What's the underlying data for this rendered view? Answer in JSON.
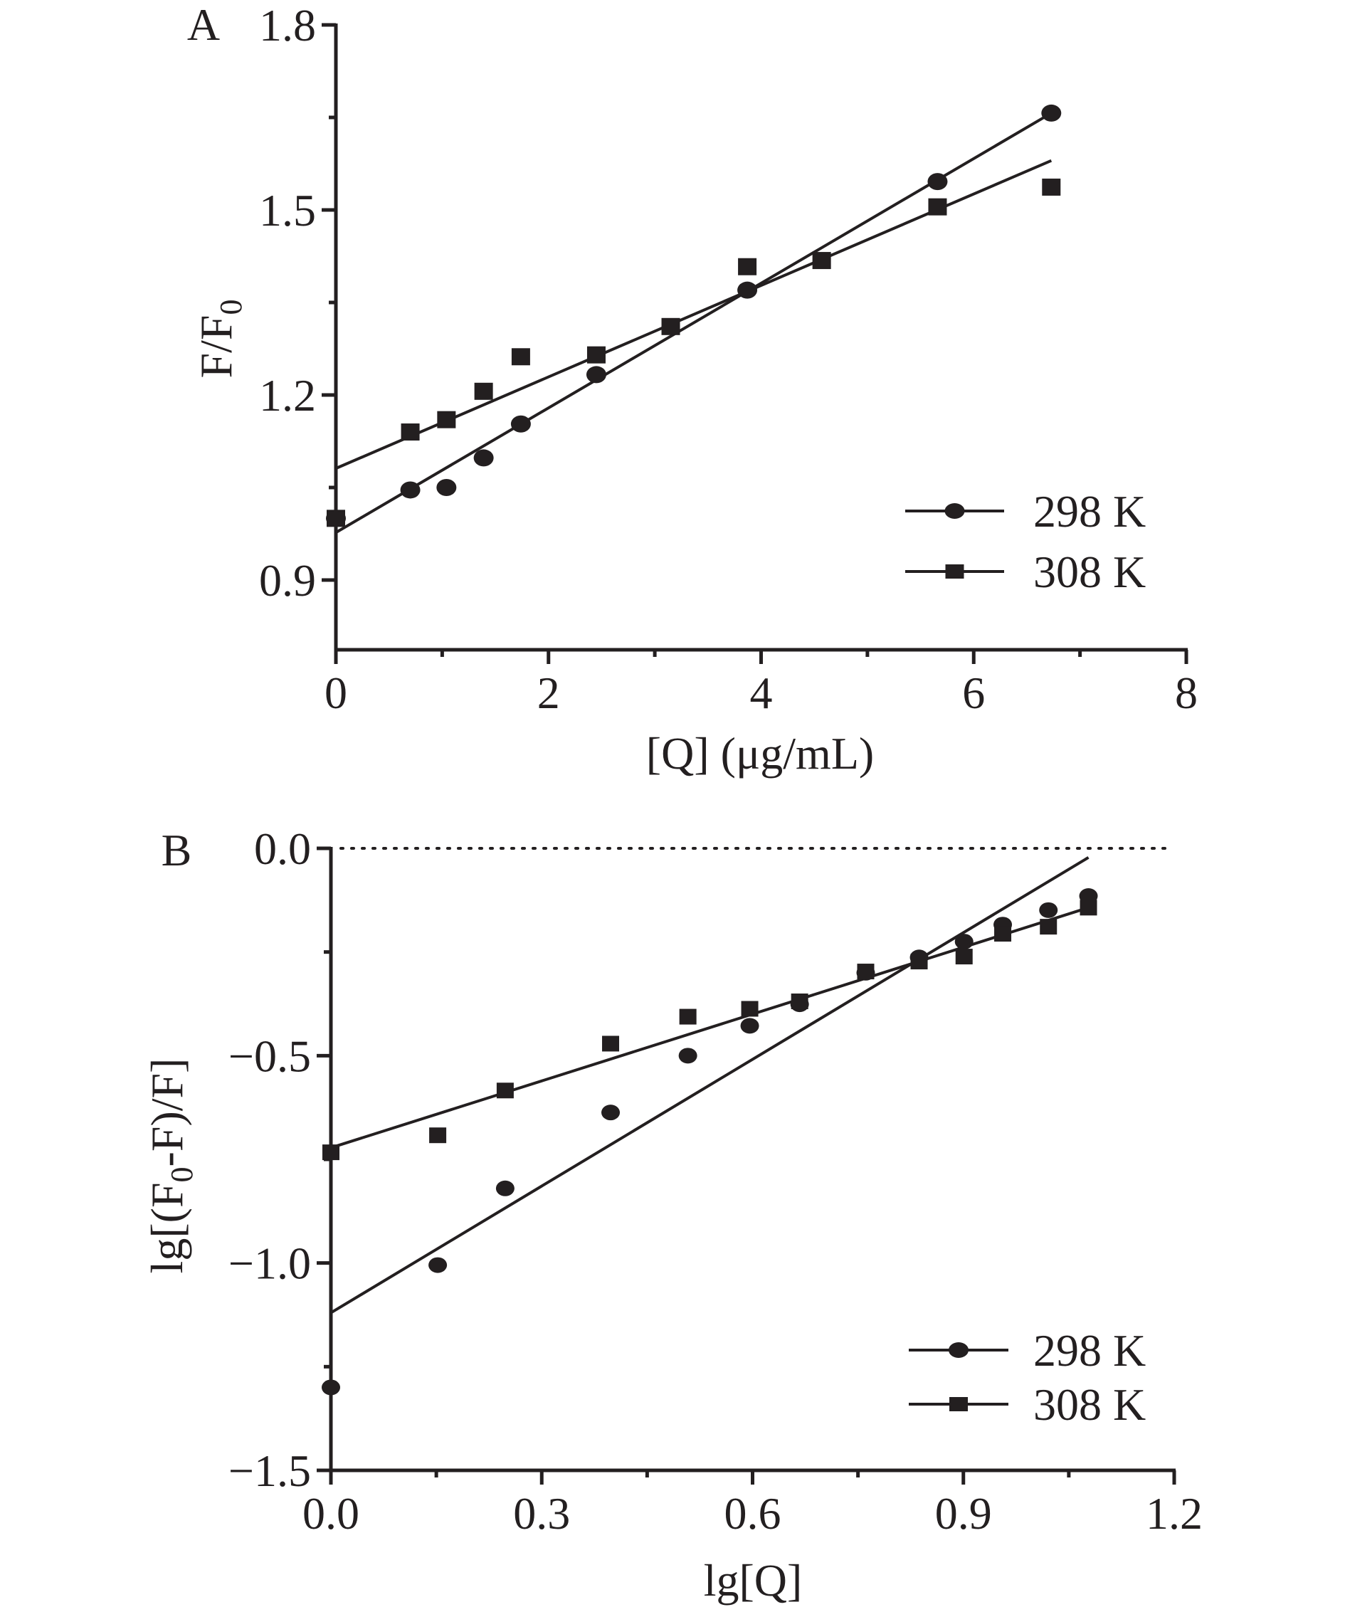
{
  "chart_data": [
    {
      "type": "scatter",
      "panel_label": "A",
      "title": "",
      "xlabel": "[Q] (μg/mL)",
      "ylabel": "F/F0",
      "ylabel_parts": {
        "main": "F/F",
        "sub": "0"
      },
      "xlim": [
        0,
        8
      ],
      "ylim": [
        0.79,
        1.8
      ],
      "x_ticks": [
        0,
        2,
        4,
        6,
        8
      ],
      "x_tick_labels": [
        "0",
        "2",
        "4",
        "6",
        "8"
      ],
      "x_minor_ticks": [
        1,
        3,
        5,
        7
      ],
      "y_ticks": [
        0.9,
        1.2,
        1.5,
        1.8
      ],
      "y_tick_labels": [
        "0.9",
        "1.2",
        "1.5",
        "1.8"
      ],
      "y_minor_ticks": [
        1.05,
        1.35,
        1.65
      ],
      "grid": false,
      "legend_position": "bottom-right",
      "series": [
        {
          "name": "298 K",
          "marker": "circle",
          "x": [
            0,
            0.7,
            1.04,
            1.39,
            1.74,
            2.45,
            3.87,
            5.66,
            6.73
          ],
          "y": [
            1.0,
            1.046,
            1.05,
            1.098,
            1.153,
            1.233,
            1.37,
            1.546,
            1.657
          ],
          "fit": {
            "x": [
              0,
              6.73
            ],
            "y": [
              0.977,
              1.657
            ]
          }
        },
        {
          "name": "308 K",
          "marker": "square",
          "x": [
            0,
            0.7,
            1.04,
            1.39,
            1.74,
            2.45,
            3.15,
            3.87,
            4.57,
            5.66,
            6.73
          ],
          "y": [
            1.0,
            1.14,
            1.16,
            1.206,
            1.262,
            1.265,
            1.311,
            1.408,
            1.418,
            1.505,
            1.537
          ],
          "fit": {
            "x": [
              0,
              6.73
            ],
            "y": [
              1.081,
              1.58
            ]
          }
        }
      ]
    },
    {
      "type": "scatter",
      "panel_label": "B",
      "title": "",
      "xlabel": "lg[Q]",
      "ylabel": "lg[(F0-F)/F]",
      "ylabel_parts": {
        "pre": "lg[(F",
        "sub": "0",
        "post": "-F)/F]"
      },
      "xlim": [
        0,
        1.2
      ],
      "ylim": [
        -1.5,
        0.0
      ],
      "x_ticks": [
        0.0,
        0.3,
        0.6,
        0.9,
        1.2
      ],
      "x_tick_labels": [
        "0.0",
        "0.3",
        "0.6",
        "0.9",
        "1.2"
      ],
      "x_minor_ticks": [
        0.15,
        0.45,
        0.75,
        1.05
      ],
      "y_ticks": [
        0.0,
        -0.5,
        -1.0,
        -1.5
      ],
      "y_tick_labels": [
        "0.0",
        "−0.5",
        "−1.0",
        "−1.5"
      ],
      "y_minor_ticks": [
        -0.25,
        -0.75,
        -1.25
      ],
      "reference_line": {
        "y": 0.0,
        "style": "dotted"
      },
      "grid": false,
      "legend_position": "bottom-right",
      "series": [
        {
          "name": "298 K",
          "marker": "circle",
          "x": [
            0,
            0.152,
            0.248,
            0.398,
            0.508,
            0.596,
            0.667,
            0.761,
            0.837,
            0.901,
            0.956,
            1.021,
            1.078
          ],
          "y": [
            -1.3,
            -1.005,
            -0.82,
            -0.637,
            -0.5,
            -0.428,
            -0.376,
            -0.3,
            -0.263,
            -0.225,
            -0.184,
            -0.149,
            -0.115
          ],
          "fit": {
            "x": [
              0,
              1.078
            ],
            "y": [
              -1.12,
              -0.022
            ]
          }
        },
        {
          "name": "308 K",
          "marker": "square",
          "x": [
            0,
            0.152,
            0.248,
            0.398,
            0.508,
            0.596,
            0.667,
            0.761,
            0.837,
            0.901,
            0.956,
            1.021,
            1.078
          ],
          "y": [
            -0.733,
            -0.692,
            -0.584,
            -0.471,
            -0.406,
            -0.387,
            -0.369,
            -0.297,
            -0.273,
            -0.261,
            -0.206,
            -0.189,
            -0.143
          ],
          "fit": {
            "x": [
              0,
              1.078
            ],
            "y": [
              -0.722,
              -0.143
            ]
          }
        }
      ]
    }
  ],
  "colors": {
    "ink": "#231f20",
    "background": "#ffffff"
  }
}
